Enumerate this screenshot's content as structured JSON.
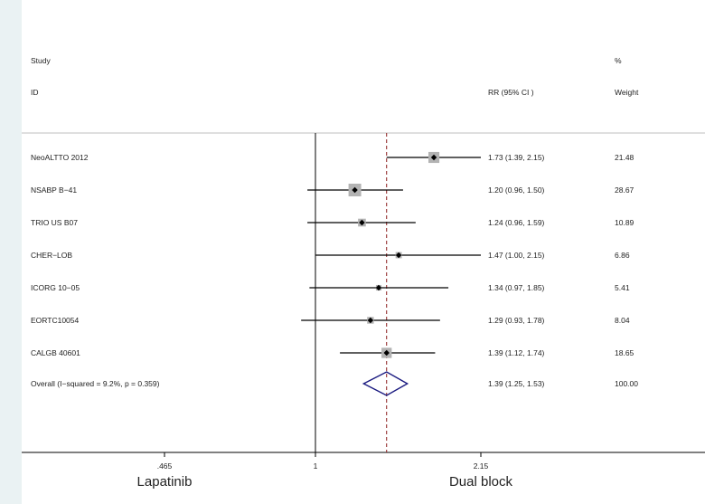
{
  "chart_data": {
    "type": "forest",
    "header": {
      "study_line1": "Study",
      "study_line2": "ID",
      "rr_label": "RR (95% CI  )",
      "weight_line1": "%",
      "weight_line2": "Weight"
    },
    "studies": [
      {
        "name": "NeoALTTO 2012",
        "rr": 1.73,
        "lo": 1.39,
        "hi": 2.15,
        "ci_text": "1.73 (1.39, 2.15)",
        "weight": 21.48,
        "weight_text": "21.48"
      },
      {
        "name": "NSABP B−41",
        "rr": 1.2,
        "lo": 0.96,
        "hi": 1.5,
        "ci_text": "1.20 (0.96, 1.50)",
        "weight": 28.67,
        "weight_text": "28.67"
      },
      {
        "name": "TRIO US B07",
        "rr": 1.24,
        "lo": 0.96,
        "hi": 1.59,
        "ci_text": "1.24 (0.96, 1.59)",
        "weight": 10.89,
        "weight_text": "10.89"
      },
      {
        "name": "CHER−LOB",
        "rr": 1.47,
        "lo": 1.0,
        "hi": 2.15,
        "ci_text": "1.47 (1.00, 2.15)",
        "weight": 6.86,
        "weight_text": "6.86"
      },
      {
        "name": "ICORG 10−05",
        "rr": 1.34,
        "lo": 0.97,
        "hi": 1.85,
        "ci_text": "1.34 (0.97, 1.85)",
        "weight": 5.41,
        "weight_text": "5.41"
      },
      {
        "name": "EORTC10054",
        "rr": 1.29,
        "lo": 0.93,
        "hi": 1.78,
        "ci_text": "1.29 (0.93, 1.78)",
        "weight": 8.04,
        "weight_text": "8.04"
      },
      {
        "name": "CALGB 40601",
        "rr": 1.39,
        "lo": 1.12,
        "hi": 1.74,
        "ci_text": "1.39 (1.12, 1.74)",
        "weight": 18.65,
        "weight_text": "18.65"
      }
    ],
    "overall": {
      "name": "Overall  (I−squared = 9.2%, p = 0.359)",
      "rr": 1.39,
      "lo": 1.25,
      "hi": 1.53,
      "ci_text": "1.39 (1.25, 1.53)",
      "weight_text": "100.00"
    },
    "x_scale": "log",
    "xlim": [
      0.465,
      2.15
    ],
    "x_ticks": [
      0.465,
      1,
      2.15
    ],
    "x_tick_labels": [
      ".465",
      "1",
      "2.15"
    ],
    "null_line": 1,
    "left_label": "Lapatinib",
    "right_label": "Dual block",
    "colors": {
      "background": "#eaf2f3",
      "panel": "#ffffff",
      "box": "#b3b3b3",
      "line": "#000000",
      "dashed": "#8b1a1a",
      "diamond": "#1a1a80",
      "separator": "#bfbfbf"
    }
  }
}
